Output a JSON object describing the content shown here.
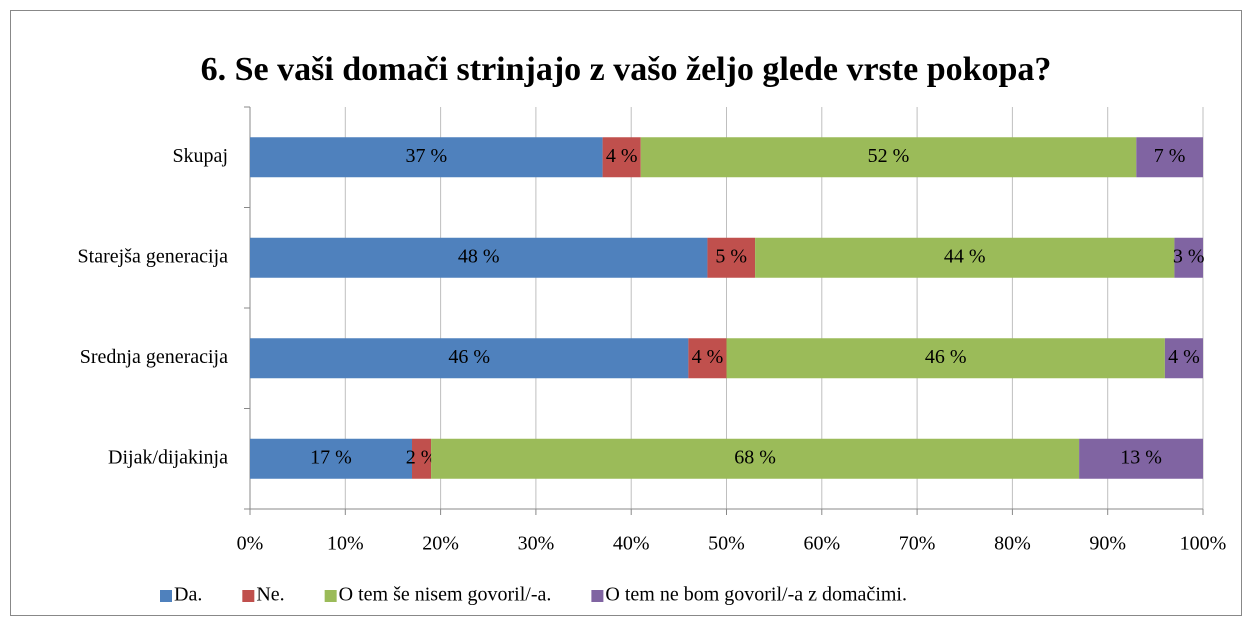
{
  "chart_data": {
    "type": "stacked_barh",
    "title": "6. Se vaši domači strinjajo z vašo željo glede vrste pokopa?",
    "categories": [
      "Skupaj",
      "Starejša generacija",
      "Srednja generacija",
      "Dijak/dijakinja"
    ],
    "series": [
      {
        "name": "Da.",
        "color": "#4f81bd",
        "values": [
          37,
          48,
          46,
          17
        ],
        "value_labels": [
          "37 %",
          "48 %",
          "46 %",
          "17 %"
        ]
      },
      {
        "name": "Ne.",
        "color": "#c0504d",
        "values": [
          4,
          5,
          4,
          2
        ],
        "value_labels": [
          "4 %",
          "5 %",
          "4 %",
          "2 %"
        ]
      },
      {
        "name": "O tem še nisem govoril/-a.",
        "color": "#9bbb59",
        "values": [
          52,
          44,
          46,
          68
        ],
        "value_labels": [
          "52 %",
          "44 %",
          "46 %",
          "68 %"
        ]
      },
      {
        "name": "O tem ne bom govoril/-a z domačimi.",
        "color": "#8064a2",
        "values": [
          7,
          3,
          4,
          13
        ],
        "value_labels": [
          "7 %",
          "3 %",
          "4 %",
          "13 %"
        ]
      }
    ],
    "xlim": [
      0,
      100
    ],
    "xticks": [
      {
        "value": 0,
        "label": "0%"
      },
      {
        "value": 10,
        "label": "10%"
      },
      {
        "value": 20,
        "label": "20%"
      },
      {
        "value": 30,
        "label": "30%"
      },
      {
        "value": 40,
        "label": "40%"
      },
      {
        "value": 50,
        "label": "50%"
      },
      {
        "value": 60,
        "label": "60%"
      },
      {
        "value": 70,
        "label": "70%"
      },
      {
        "value": 80,
        "label": "80%"
      },
      {
        "value": 90,
        "label": "90%"
      },
      {
        "value": 100,
        "label": "100%"
      }
    ],
    "grid": true,
    "legend": "bottom"
  }
}
